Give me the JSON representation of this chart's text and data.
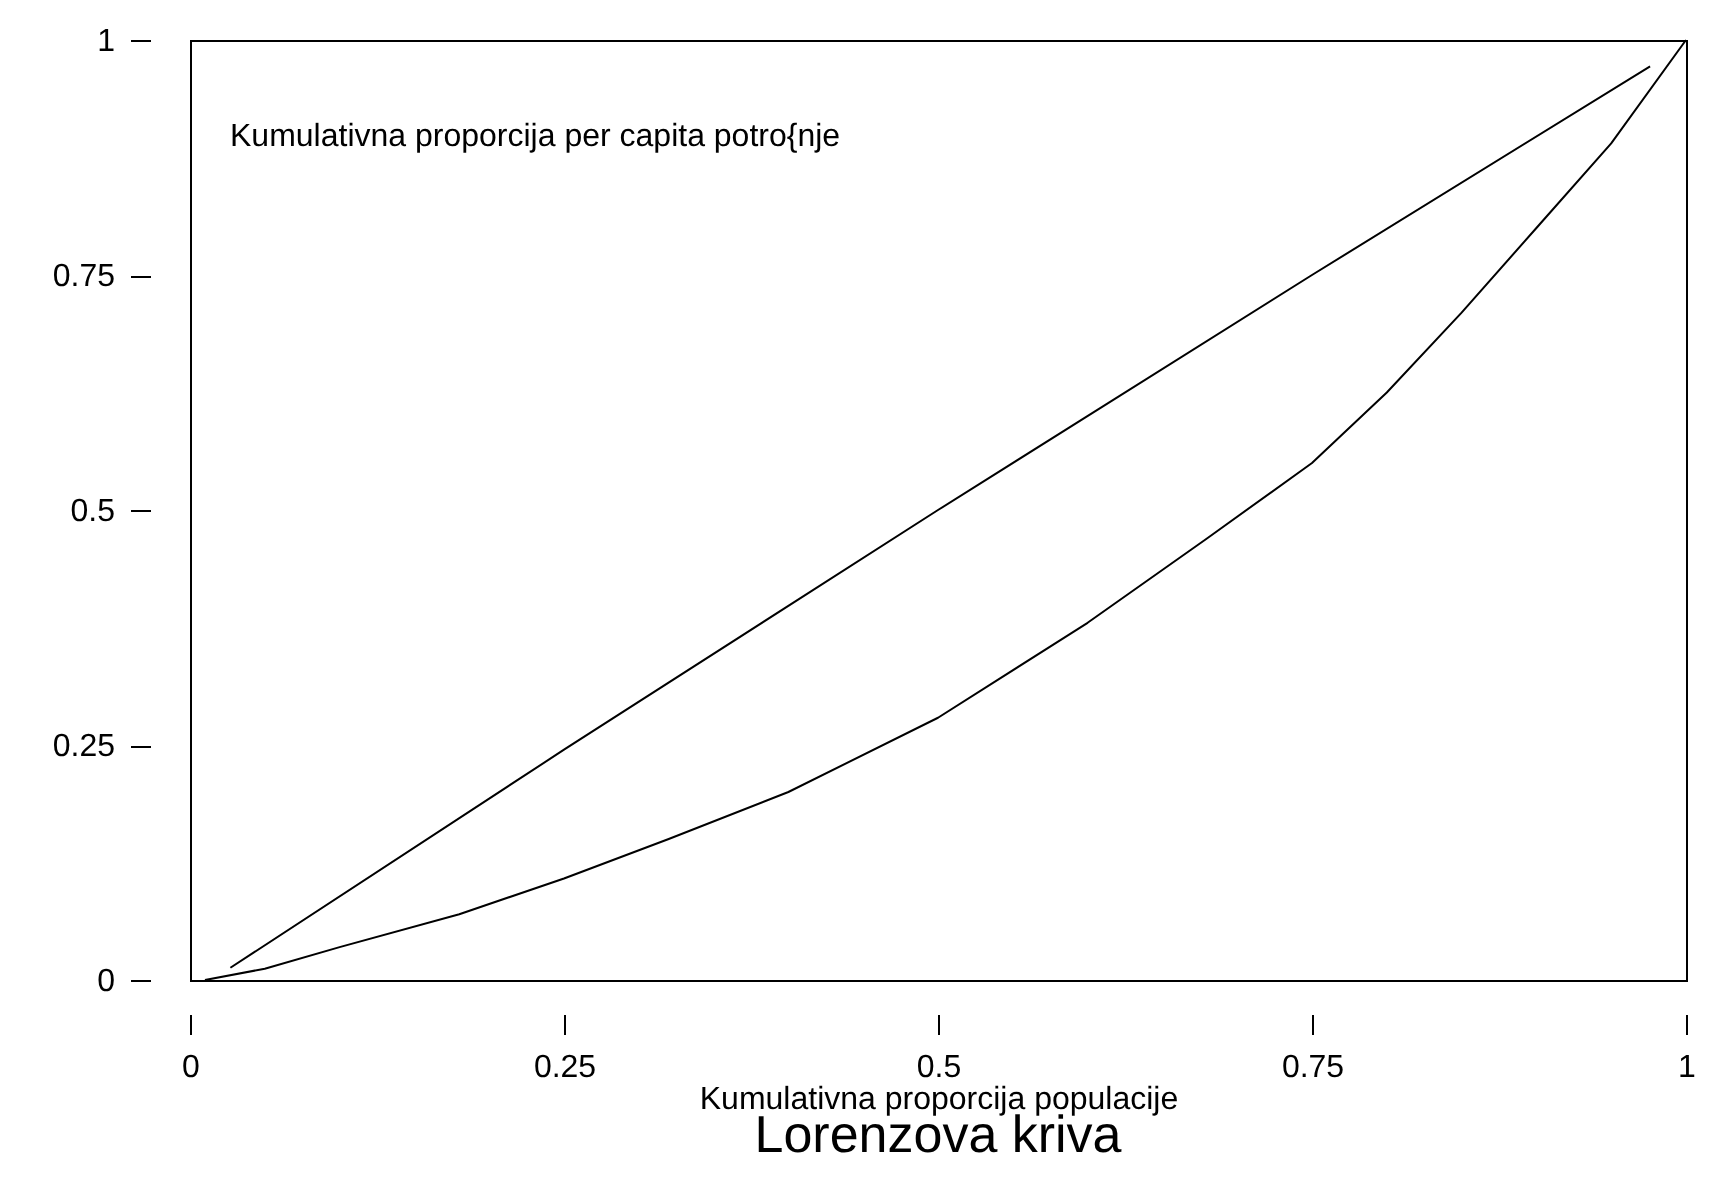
{
  "chart_data": {
    "type": "line",
    "title": "Lorenzova kriva",
    "xlabel": "Kumulativna proporcija populacije",
    "annotations": [
      "Kumulativna proporcija per capita potro{nje"
    ],
    "series": [
      {
        "color": "#000000",
        "x": [
          0.027,
          0.25,
          0.5,
          0.75,
          0.976
        ],
        "values": [
          0.013,
          0.245,
          0.5,
          0.75,
          0.972
        ]
      },
      {
        "color": "#000000",
        "x": [
          0.01,
          0.05,
          0.1,
          0.18,
          0.25,
          0.32,
          0.4,
          0.5,
          0.6,
          0.68,
          0.75,
          0.8,
          0.85,
          0.9,
          0.95,
          1.0
        ],
        "values": [
          0,
          0.012,
          0.035,
          0.07,
          0.108,
          0.15,
          0.2,
          0.279,
          0.38,
          0.47,
          0.55,
          0.625,
          0.71,
          0.8,
          0.89,
          1.0
        ]
      }
    ],
    "xlim": [
      0,
      1
    ],
    "ylim": [
      0,
      1
    ],
    "xticks": [
      0,
      0.25,
      0.5,
      0.75,
      1
    ],
    "yticks": [
      0,
      0.25,
      0.5,
      0.75,
      1
    ],
    "grid": false,
    "marker": "none",
    "line_style": "solid"
  }
}
